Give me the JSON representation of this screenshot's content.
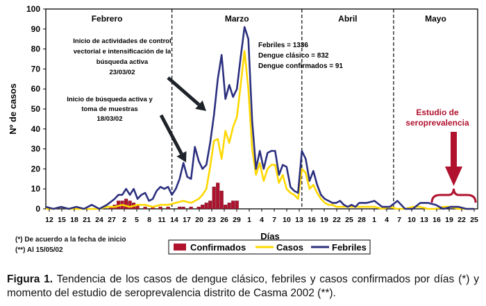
{
  "chart_data": {
    "type": "line",
    "ylabel": "Nº de casos",
    "xlabel": "Días",
    "ylim": [
      0,
      100
    ],
    "yticks": [
      0,
      10,
      20,
      30,
      40,
      50,
      60,
      70,
      80,
      90,
      100
    ],
    "xlim": [
      0,
      113
    ],
    "xtick_labels": [
      "12",
      "15",
      "18",
      "21",
      "24",
      "27",
      "2",
      "5",
      "8",
      "11",
      "14",
      "17",
      "20",
      "23",
      "26",
      "29",
      "1",
      "4",
      "7",
      "10",
      "13",
      "16",
      "19",
      "22",
      "25",
      "28",
      "1",
      "4",
      "7",
      "10",
      "13",
      "16",
      "19",
      "22",
      "25"
    ],
    "month_labels": [
      "Febrero",
      "Marzo",
      "Abril",
      "Mayo"
    ],
    "summary_lines": [
      "Febriles = 1336",
      "Dengue clásico = 832",
      "Dengue confirmados = 91"
    ],
    "annotations": {
      "vector_control": [
        "Inicio de actividades de control",
        "vectorial e intensificación de la",
        "búsqueda activa",
        "23/03/02"
      ],
      "active_search": [
        "Inicio de búsqueda activa y",
        "toma de muestras",
        "18/03/02"
      ],
      "seroprevalence": [
        "Estudio de",
        "seroprevalencia"
      ]
    },
    "legend": [
      "Confirmados",
      "Casos",
      "Febriles"
    ],
    "legend_placement": "bottom-center",
    "series": [
      {
        "name": "Febriles",
        "color": "#2b2f7e",
        "x": [
          0,
          2,
          4,
          6,
          8,
          10,
          12,
          14,
          16,
          18,
          19,
          20,
          21,
          22,
          23,
          24,
          25,
          26,
          27,
          28,
          29,
          30,
          31,
          32,
          33,
          34,
          35,
          36,
          37,
          38,
          39,
          40,
          41,
          42,
          43,
          44,
          45,
          46,
          47,
          48,
          49,
          50,
          51,
          52,
          53,
          54,
          55,
          56,
          57,
          58,
          59,
          60,
          61,
          62,
          63,
          64,
          65,
          66,
          67,
          68,
          69,
          70,
          71,
          72,
          73,
          74,
          75,
          76,
          77,
          78,
          79,
          80,
          81,
          82,
          84,
          86,
          88,
          90,
          92,
          94,
          96,
          98,
          100,
          102,
          104,
          106,
          108,
          110,
          112
        ],
        "values": [
          1,
          0,
          1,
          0,
          1,
          0,
          2,
          0,
          2,
          5,
          7,
          7,
          10,
          7,
          10,
          5,
          7,
          8,
          4,
          5,
          9,
          11,
          10,
          11,
          7,
          10,
          15,
          23,
          16,
          15,
          31,
          24,
          20,
          22,
          33,
          47,
          65,
          77,
          55,
          62,
          56,
          60,
          76,
          91,
          85,
          44,
          20,
          29,
          20,
          28,
          29,
          29,
          17,
          22,
          21,
          11,
          9,
          8,
          29,
          25,
          14,
          19,
          12,
          7,
          5,
          4,
          3,
          3,
          4,
          2,
          1,
          2,
          1,
          3,
          3,
          4,
          1,
          1,
          4,
          0,
          0,
          3,
          3,
          2,
          0,
          1,
          1,
          0,
          0
        ]
      },
      {
        "name": "Casos",
        "color": "#ffd800",
        "x": [
          0,
          2,
          4,
          6,
          8,
          10,
          12,
          14,
          16,
          18,
          20,
          22,
          24,
          26,
          28,
          30,
          32,
          34,
          36,
          38,
          39,
          40,
          41,
          42,
          43,
          44,
          45,
          46,
          47,
          48,
          49,
          50,
          51,
          52,
          53,
          54,
          55,
          56,
          57,
          58,
          59,
          60,
          61,
          62,
          63,
          64,
          65,
          66,
          67,
          68,
          69,
          70,
          71,
          72,
          73,
          74,
          75,
          76,
          78,
          80,
          82,
          84,
          86,
          88,
          90,
          92,
          94,
          96,
          98,
          100,
          102,
          104,
          106,
          108,
          110,
          112
        ],
        "values": [
          0,
          0,
          1,
          0,
          0,
          0,
          0,
          0,
          1,
          1,
          2,
          1,
          2,
          2,
          1,
          2,
          2,
          3,
          4,
          3,
          4,
          5,
          7,
          10,
          21,
          34,
          35,
          25,
          39,
          33,
          41,
          46,
          62,
          79,
          60,
          30,
          17,
          23,
          14,
          20,
          22,
          22,
          13,
          17,
          10,
          8,
          7,
          5,
          20,
          18,
          10,
          12,
          8,
          5,
          3,
          2,
          2,
          1,
          1,
          1,
          1,
          1,
          1,
          0,
          1,
          0,
          0,
          1,
          1,
          0,
          0,
          1,
          1,
          0,
          0,
          0
        ]
      },
      {
        "name": "Confirmados",
        "color": "#b0122e",
        "x": [
          17,
          18,
          19,
          20,
          21,
          22,
          23,
          24,
          26,
          28,
          30,
          32,
          35,
          36,
          38,
          40,
          41,
          42,
          43,
          44,
          45,
          46,
          47,
          48,
          49,
          50
        ],
        "values": [
          1,
          2,
          4,
          4,
          5,
          4,
          3,
          2,
          1,
          1,
          1,
          1,
          1,
          1,
          1,
          1,
          2,
          3,
          4,
          11,
          13,
          9,
          2,
          3,
          4,
          4
        ]
      }
    ]
  },
  "notes": {
    "note1": "(*) De acuerdo a la fecha de inicio",
    "note2": "(**) Al 15/05/02"
  },
  "caption": {
    "label": "Figura 1.",
    "text": " Tendencia de los casos de dengue clásico, febriles y casos confirmados por días (*) y momento del estudio de seroprevalencia distrito de Casma 2002 (**)."
  }
}
